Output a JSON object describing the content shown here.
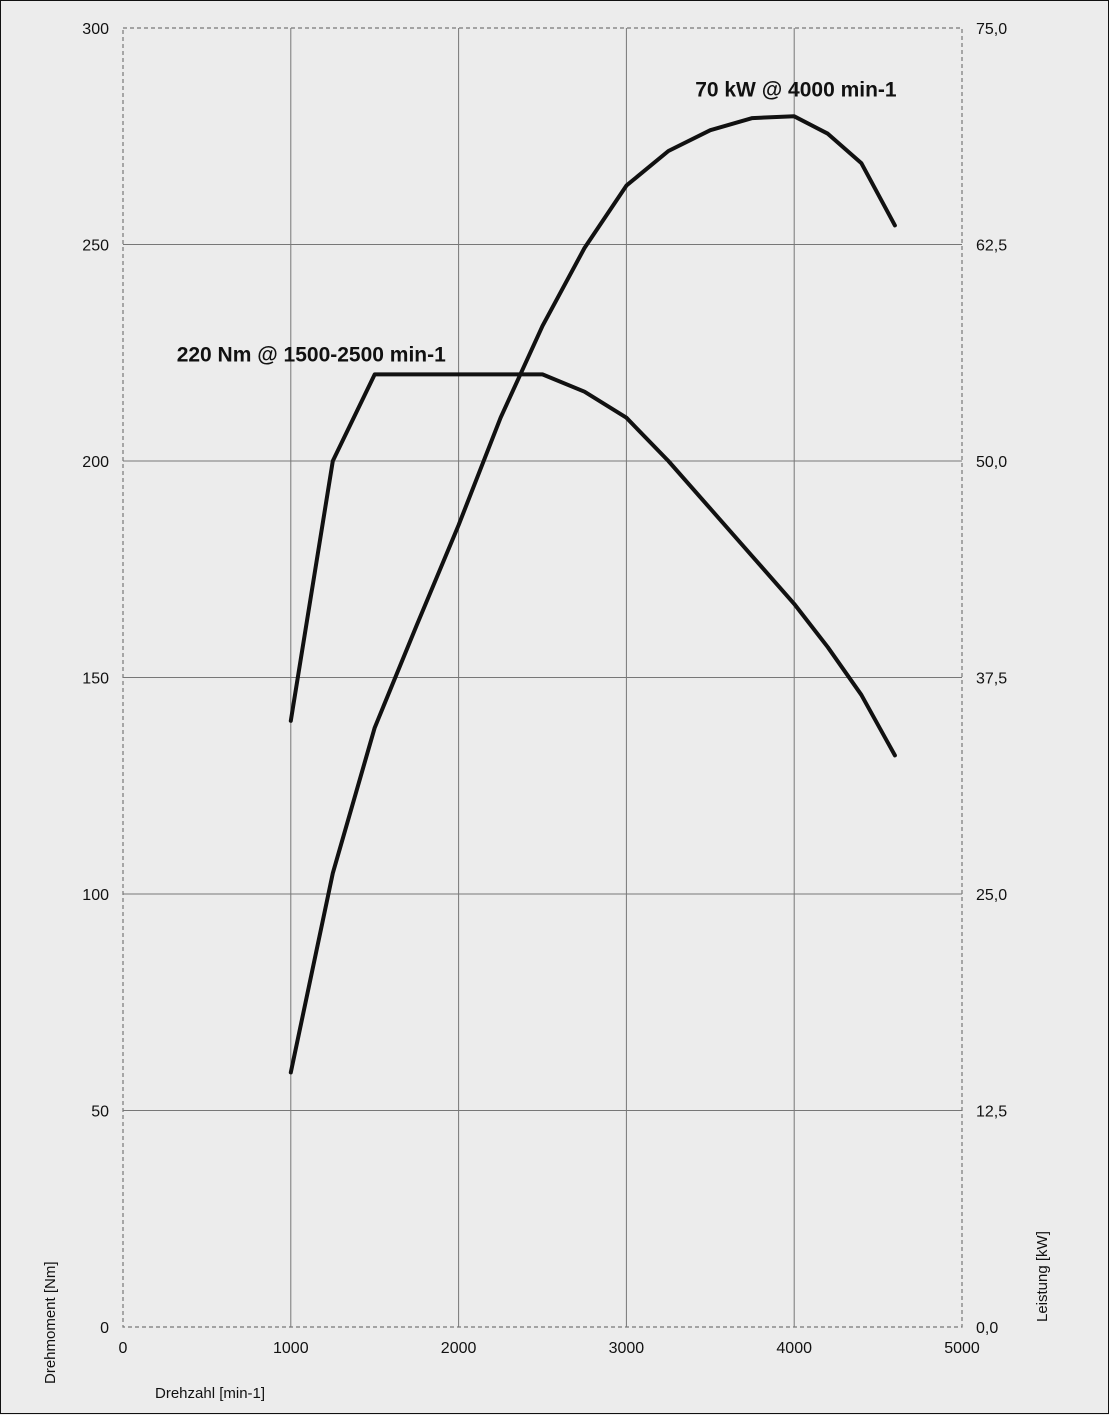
{
  "chart_data": {
    "type": "line",
    "xlabel": "Drehzahl [min-1]",
    "ylabel_left": "Drehmoment [Nm]",
    "ylabel_right": "Leistung [kW]",
    "xlim": [
      0,
      5000
    ],
    "ylim_left": [
      0,
      300
    ],
    "ylim_right": [
      0,
      75
    ],
    "x_ticks": [
      "0",
      "1000",
      "2000",
      "3000",
      "4000",
      "5000"
    ],
    "y_left_ticks": [
      "0",
      "50",
      "100",
      "150",
      "200",
      "250",
      "300"
    ],
    "y_right_ticks": [
      "0,0",
      "12,5",
      "25,0",
      "37,5",
      "50,0",
      "62,5",
      "75,0"
    ],
    "grid": true,
    "series": [
      {
        "axis": "left",
        "x": [
          1000,
          1250,
          1500,
          2000,
          2500,
          2750,
          3000,
          3250,
          3500,
          3750,
          4000,
          4200,
          4400,
          4600
        ],
        "values": [
          140,
          200,
          220,
          220,
          220,
          216,
          210,
          200,
          189,
          178,
          167,
          157,
          146,
          132
        ]
      },
      {
        "axis": "right",
        "x": [
          1000,
          1250,
          1500,
          1750,
          2000,
          2250,
          2500,
          2750,
          3000,
          3250,
          3500,
          3750,
          4000,
          4200,
          4400,
          4600
        ],
        "values": [
          14.7,
          26.2,
          34.6,
          40.5,
          46.3,
          52.5,
          57.8,
          62.3,
          65.9,
          67.9,
          69.1,
          69.8,
          69.9,
          68.9,
          67.2,
          63.6
        ]
      }
    ],
    "annotations": [
      {
        "text": "220 Nm @ 1500-2500 min-1",
        "x": 1500,
        "y_left": 220
      },
      {
        "text": "70 kW @ 4000 min-1",
        "x": 4000,
        "y_right": 70
      }
    ]
  }
}
